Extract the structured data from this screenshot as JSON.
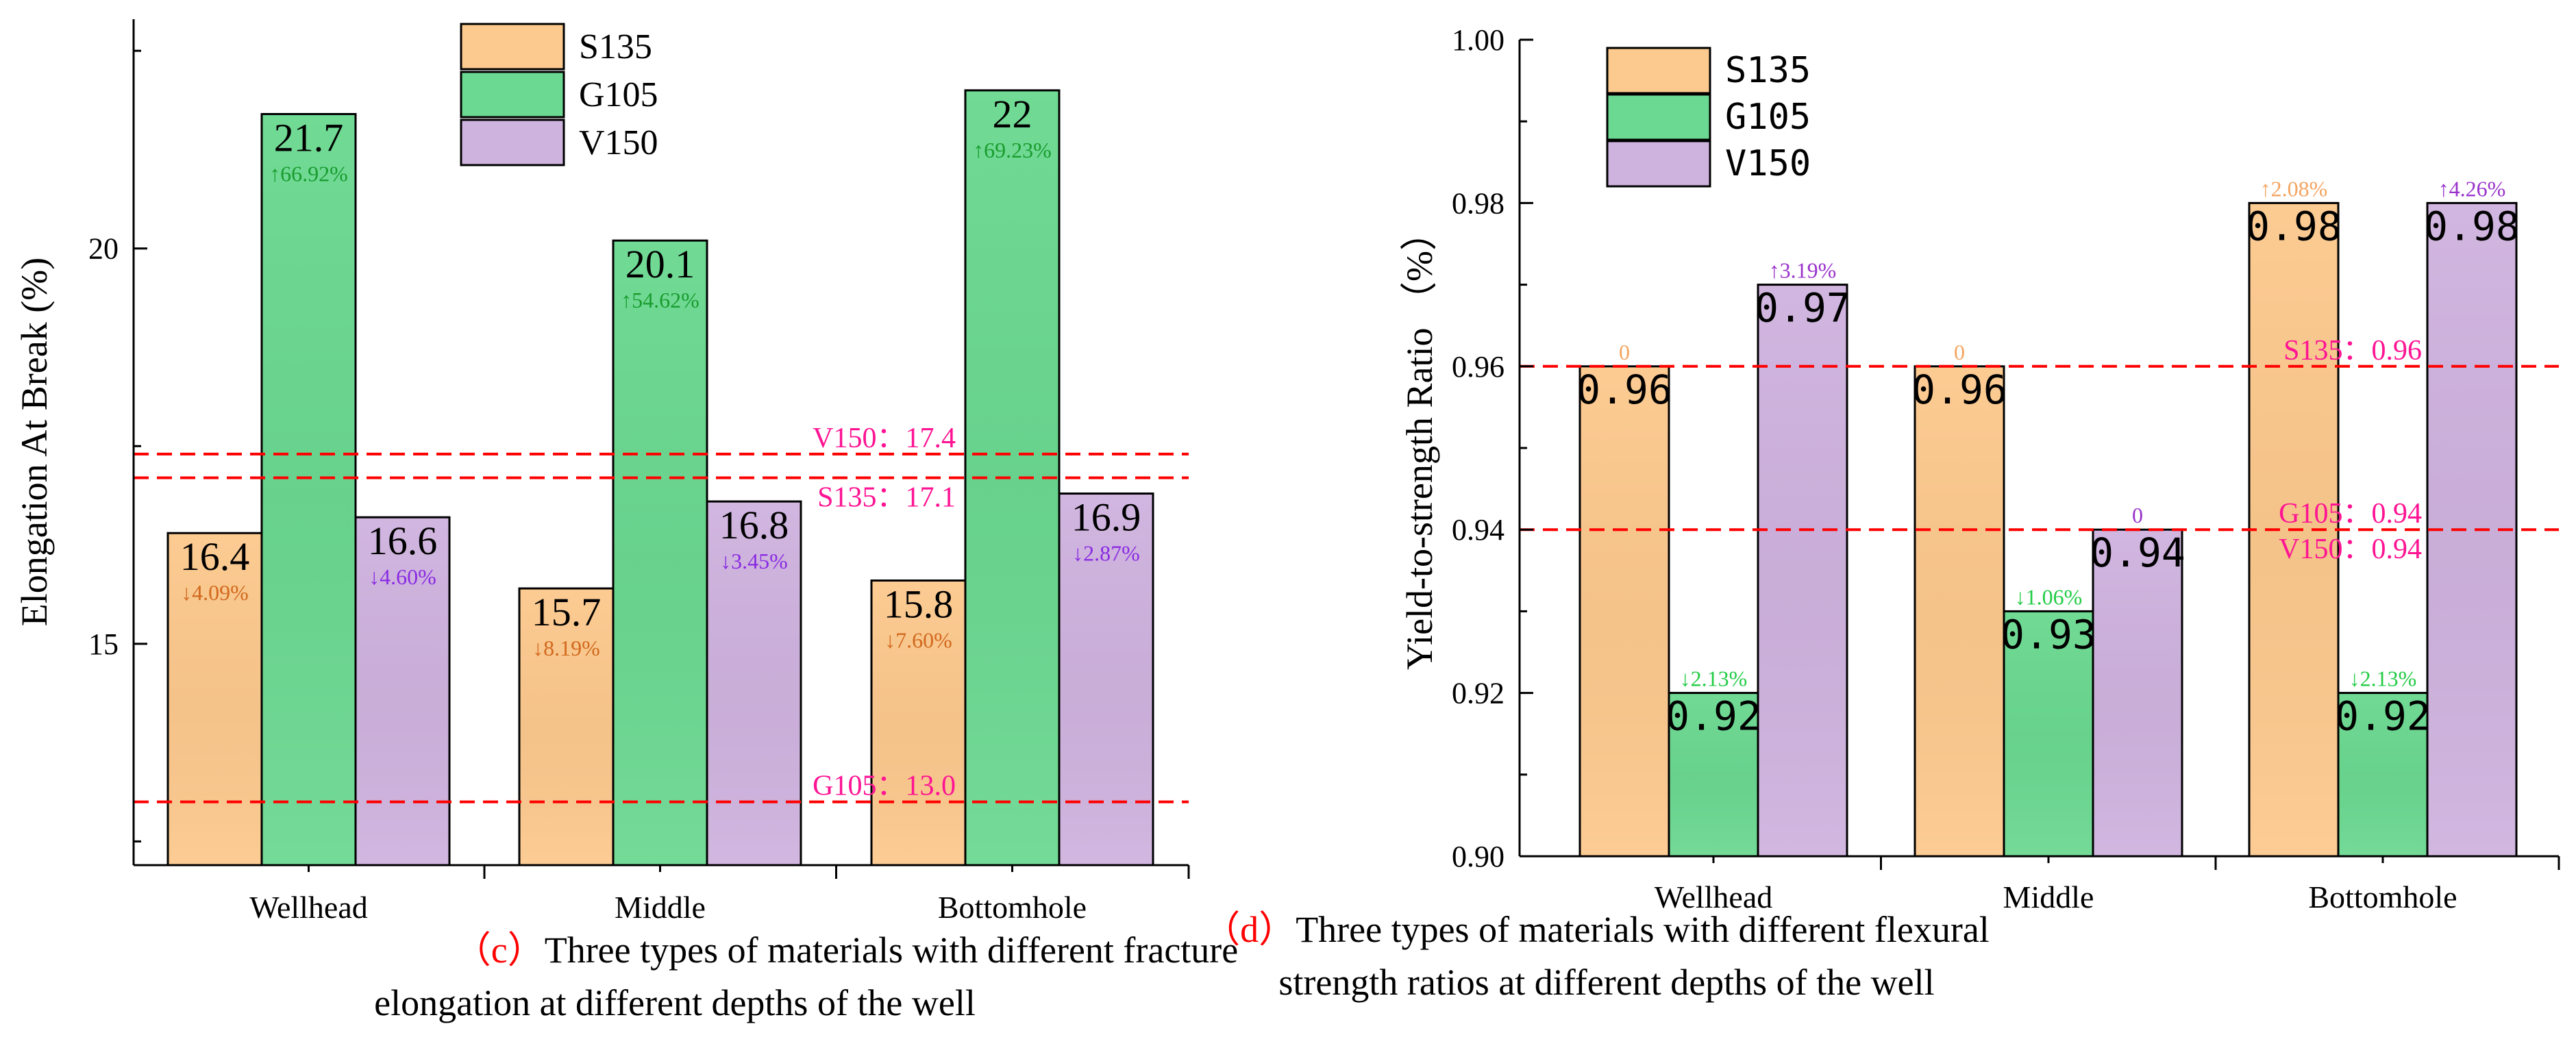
{
  "colors": {
    "S135": "#fcc98e",
    "G105": "#6bd991",
    "V150": "#cfb3df",
    "ref_line": "#ff0000",
    "ref_label": "#ff1493"
  },
  "legend_labels": [
    "S135",
    "G105",
    "V150"
  ],
  "chart_data": [
    {
      "type": "bar",
      "title": "",
      "ylabel": "Elongation At Break (%)",
      "xlabel": "",
      "categories": [
        "Wellhead",
        "Middle",
        "Bottomhole"
      ],
      "ylim": [
        12.2,
        22.9
      ],
      "yticks": [
        15,
        20
      ],
      "ytick_labels": [
        "15",
        "20"
      ],
      "legend": "top-center",
      "grid": false,
      "value_font": "serif",
      "series": [
        {
          "name": "S135",
          "values": [
            16.4,
            15.7,
            15.8
          ],
          "value_labels": [
            "16.4",
            "15.7",
            "15.8"
          ],
          "pct_labels": [
            "↓4.09%",
            "↓8.19%",
            "↓7.60%"
          ],
          "pct_color": "#d2691e",
          "pct_pos": "inside"
        },
        {
          "name": "G105",
          "values": [
            21.7,
            20.1,
            22
          ],
          "value_labels": [
            "21.7",
            "20.1",
            "22"
          ],
          "pct_labels": [
            "↑66.92%",
            "↑54.62%",
            "↑69.23%"
          ],
          "pct_color": "#1a9c2e",
          "pct_pos": "inside"
        },
        {
          "name": "V150",
          "values": [
            16.6,
            16.8,
            16.9
          ],
          "value_labels": [
            "16.6",
            "16.8",
            "16.9"
          ],
          "pct_labels": [
            "↓4.60%",
            "↓3.45%",
            "↓2.87%"
          ],
          "pct_color": "#8a2be2",
          "pct_pos": "inside"
        }
      ],
      "reference_lines": [
        {
          "value": 17.4,
          "label": "V150：17.4",
          "label_pos": "above"
        },
        {
          "value": 17.1,
          "label": "S135：17.1",
          "label_pos": "below"
        },
        {
          "value": 13.0,
          "label": "G105：13.0",
          "label_pos": "above"
        }
      ],
      "caption_mark": "（c）",
      "caption_lines": [
        "Three types of materials with different fracture",
        "elongation at different depths of the well"
      ]
    },
    {
      "type": "bar",
      "title": "",
      "ylabel": "Yield-to-strength Ratio （%）",
      "xlabel": "",
      "categories": [
        "Wellhead",
        "Middle",
        "Bottomhole"
      ],
      "ylim": [
        0.9,
        1.0
      ],
      "yticks": [
        0.9,
        0.92,
        0.94,
        0.96,
        0.98,
        1.0
      ],
      "ytick_labels": [
        "0.90",
        "0.92",
        "0.94",
        "0.96",
        "0.98",
        "1.00"
      ],
      "legend": "top-left",
      "grid": false,
      "value_font": "mono",
      "series": [
        {
          "name": "S135",
          "values": [
            0.96,
            0.96,
            0.98
          ],
          "value_labels": [
            "0.96",
            "0.96",
            "0.98"
          ],
          "pct_labels": [
            "0",
            "0",
            "↑2.08%"
          ],
          "pct_color": "#f4a460",
          "pct_pos": "above"
        },
        {
          "name": "G105",
          "values": [
            0.92,
            0.93,
            0.92
          ],
          "value_labels": [
            "0.92",
            "0.93",
            "0.92"
          ],
          "pct_labels": [
            "↓2.13%",
            "↓1.06%",
            "↓2.13%"
          ],
          "pct_color": "#22cc44",
          "pct_pos": "above"
        },
        {
          "name": "V150",
          "values": [
            0.97,
            0.94,
            0.98
          ],
          "value_labels": [
            "0.97",
            "0.94",
            "0.98"
          ],
          "pct_labels": [
            "↑3.19%",
            "0",
            "↑4.26%"
          ],
          "pct_color": "#9932cc",
          "pct_pos": "above"
        }
      ],
      "reference_lines": [
        {
          "value": 0.96,
          "label": "S135：0.96",
          "label_pos": "above"
        },
        {
          "value": 0.94,
          "label": "G105：0.94",
          "label_pos": "above"
        },
        {
          "value": 0.94,
          "label": "V150：0.94",
          "label_pos": "below"
        }
      ],
      "caption_mark": "（d）",
      "caption_lines": [
        "Three types of materials with different flexural",
        "strength ratios at different depths of the well"
      ]
    }
  ]
}
